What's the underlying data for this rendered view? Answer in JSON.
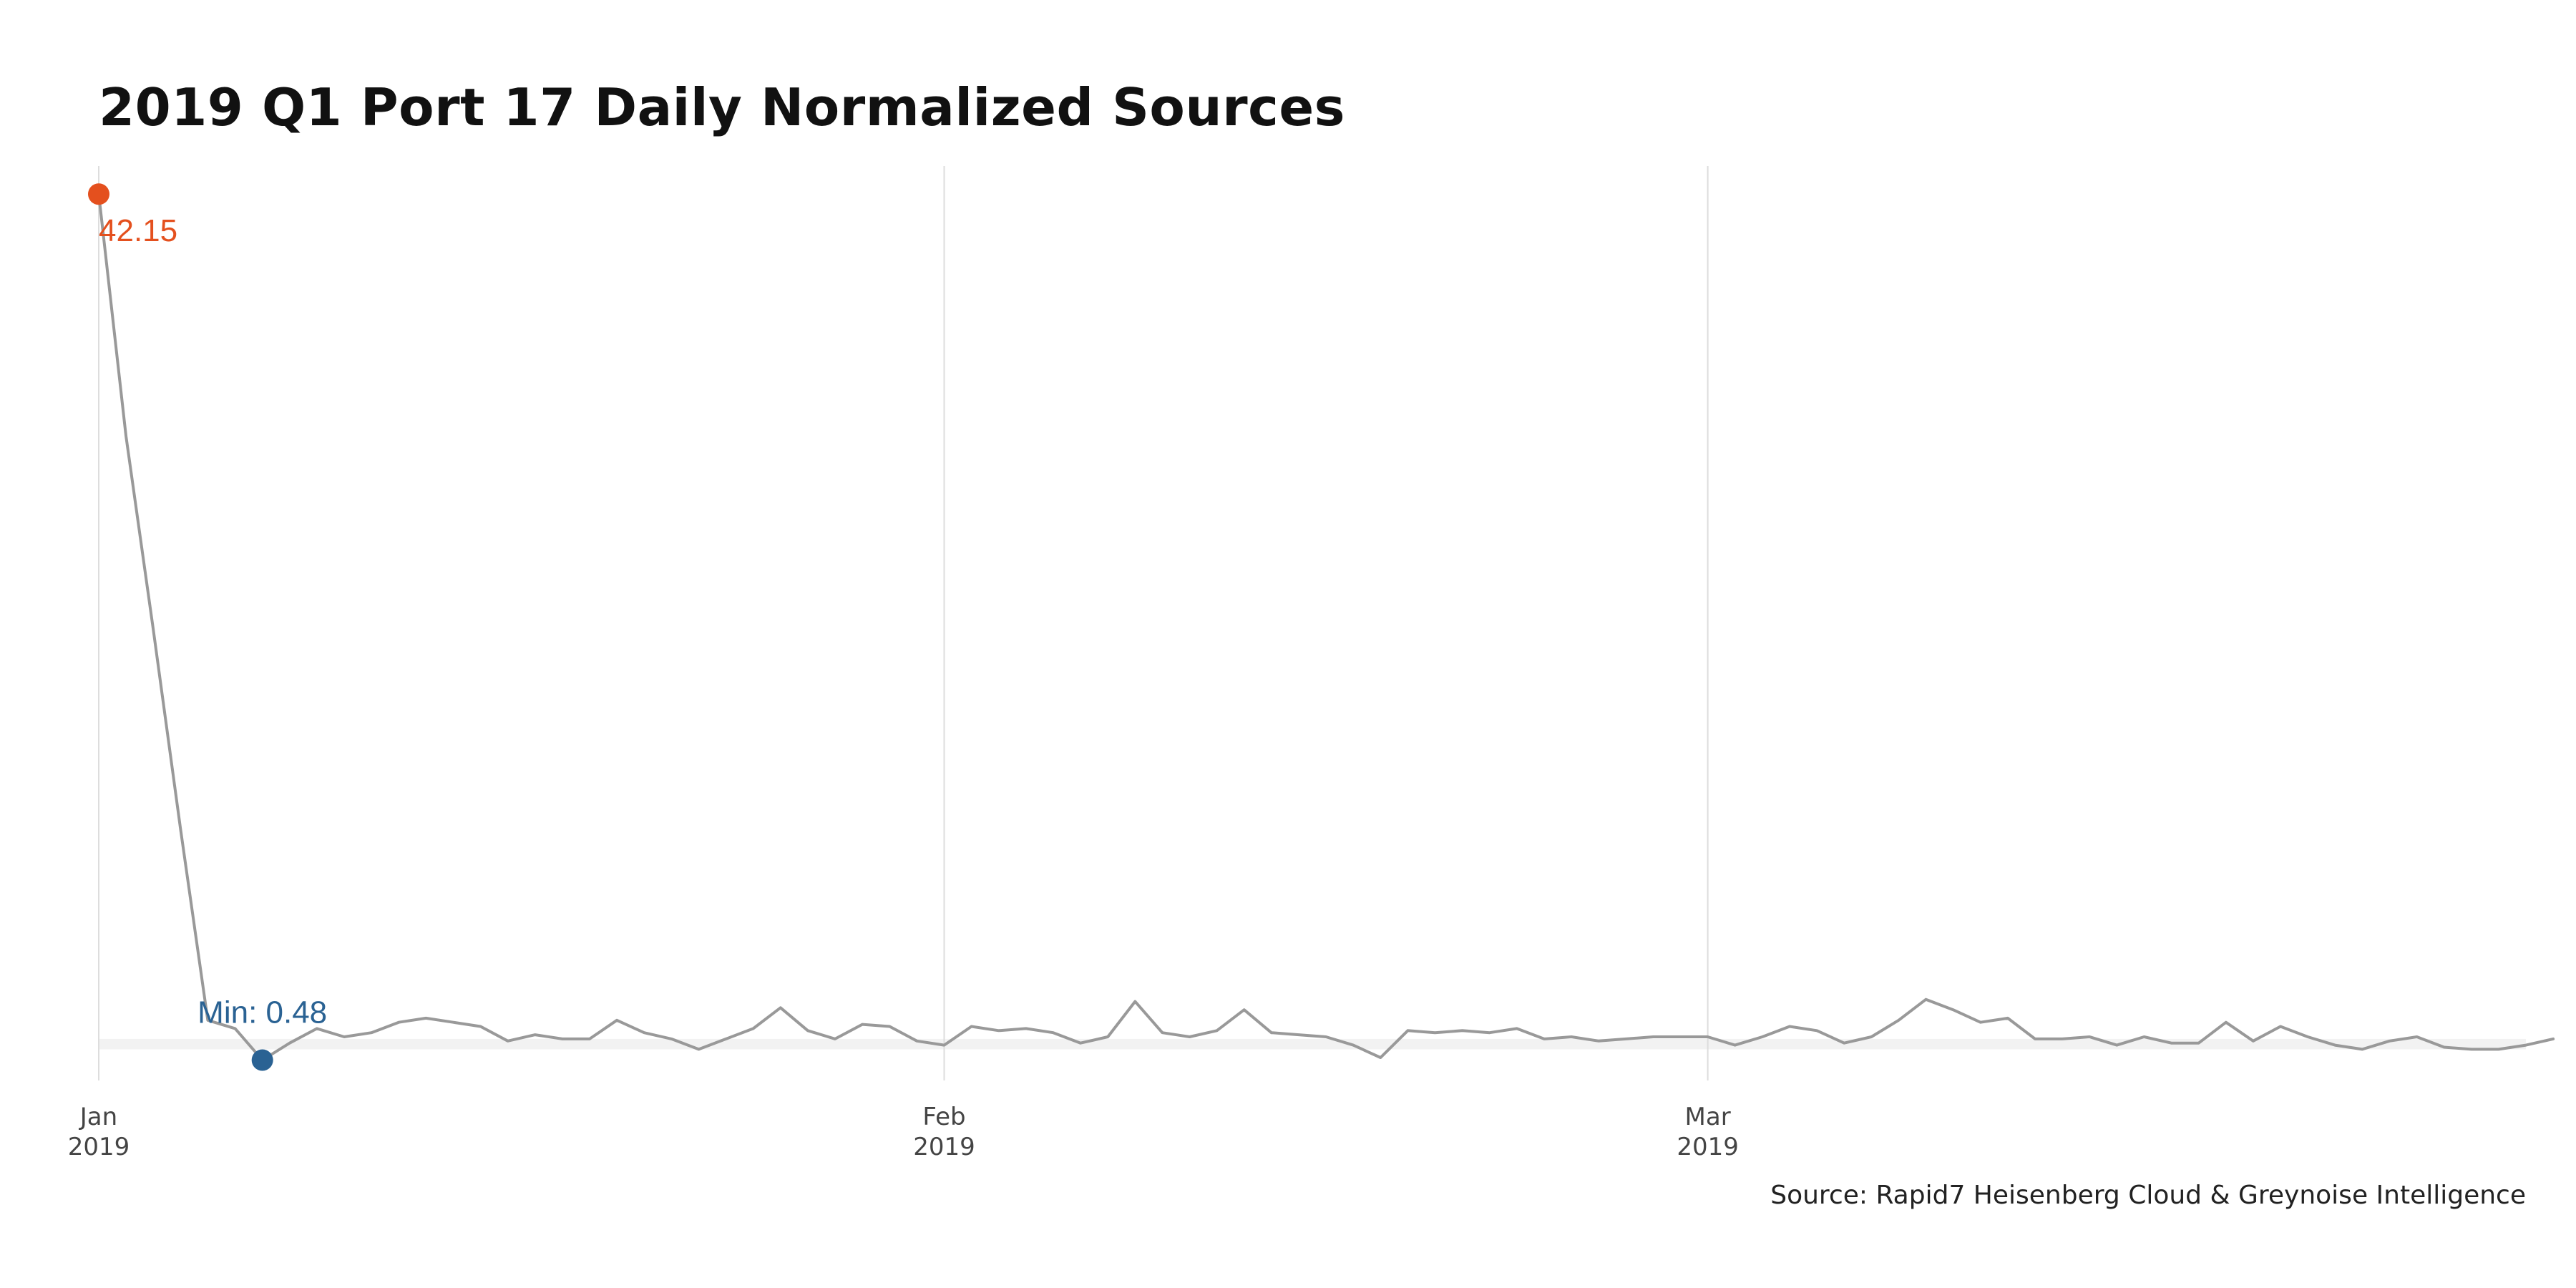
{
  "title": "2019 Q1 Port 17 Daily Normalized Sources",
  "caption": "Source: Rapid7 Heisenberg Cloud & Greynoise Intelligence",
  "colors": {
    "line": "#999999",
    "max": "#E4501E",
    "min": "#2A6293",
    "grid": "#dddddd",
    "band": "#f2f2f2",
    "tick_text": "#444444"
  },
  "chart_data": {
    "type": "line",
    "title": "2019 Q1 Port 17 Daily Normalized Sources",
    "xlabel": "",
    "ylabel": "",
    "x_start": "2019-01-01",
    "x_end": "2019-03-31",
    "ylim": [
      -0.5,
      43.5
    ],
    "grid": "vertical",
    "x_ticks": [
      {
        "date": "2019-01-01",
        "line1": "Jan",
        "line2": "2019"
      },
      {
        "date": "2019-02-01",
        "line1": "Feb",
        "line2": "2019"
      },
      {
        "date": "2019-03-01",
        "line1": "Mar",
        "line2": "2019"
      }
    ],
    "band": [
      1.0,
      1.5
    ],
    "series": [
      {
        "values": [
          42.15,
          30.5,
          21.2,
          11.6,
          2.4,
          2.0,
          0.48,
          1.3,
          2.0,
          1.6,
          1.8,
          2.3,
          2.5,
          2.3,
          2.1,
          1.4,
          1.7,
          1.5,
          1.5,
          2.4,
          1.8,
          1.5,
          1.0,
          1.5,
          2.0,
          3.0,
          1.9,
          1.5,
          2.2,
          2.1,
          1.4,
          1.2,
          2.1,
          1.9,
          2.0,
          1.8,
          1.3,
          1.6,
          3.3,
          1.8,
          1.6,
          1.9,
          2.9,
          1.8,
          1.7,
          1.6,
          1.2,
          0.6,
          1.9,
          1.8,
          1.9,
          1.8,
          2.0,
          1.5,
          1.6,
          1.4,
          1.5,
          1.6,
          1.6,
          1.6,
          1.2,
          1.6,
          2.1,
          1.9,
          1.3,
          1.6,
          2.4,
          3.4,
          2.9,
          2.3,
          2.5,
          1.5,
          1.5,
          1.6,
          1.2,
          1.6,
          1.3,
          1.3,
          2.3,
          1.4,
          2.1,
          1.6,
          1.2,
          1.0,
          1.4,
          1.6,
          1.1,
          1.0,
          1.0,
          1.2,
          1.5
        ]
      }
    ],
    "annotations": {
      "max_label": "42.15",
      "min_label": "Min: 0.48",
      "max_index": 0,
      "min_index": 6
    }
  }
}
